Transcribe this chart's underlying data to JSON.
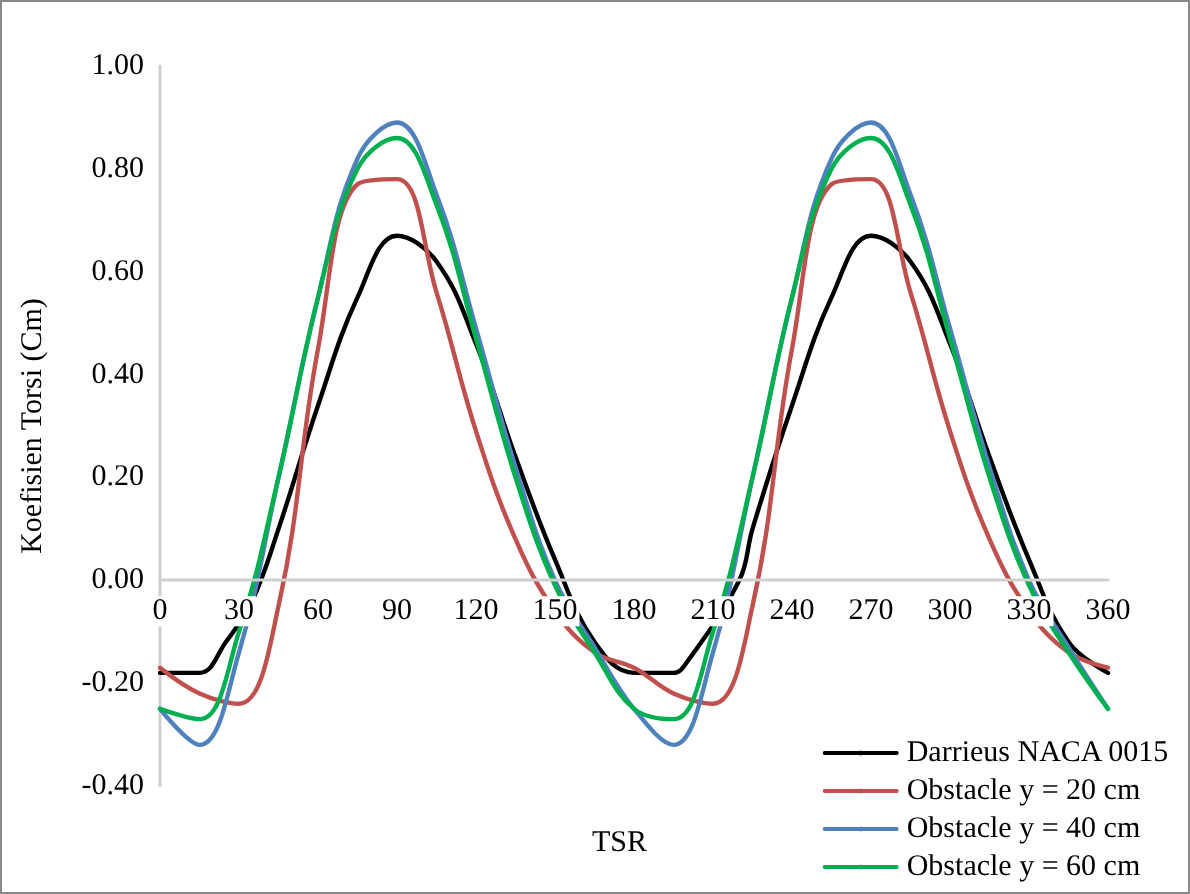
{
  "chart_data": {
    "type": "line",
    "annotations": [
      "TSR"
    ],
    "ylabel": "Koefisien Torsi (Cm)",
    "x": [
      0,
      15,
      30,
      45,
      60,
      75,
      90,
      105,
      120,
      135,
      150,
      165,
      180,
      195,
      210,
      225,
      240,
      255,
      270,
      285,
      300,
      315,
      330,
      345,
      360
    ],
    "xlim": [
      0,
      360
    ],
    "xticks": [
      0,
      30,
      60,
      90,
      120,
      150,
      180,
      210,
      240,
      270,
      300,
      330,
      360
    ],
    "ylim": [
      -0.4,
      1
    ],
    "yticks": [
      {
        "value": -0.4,
        "label": "-0.40"
      },
      {
        "value": -0.2,
        "label": "-0.20"
      },
      {
        "value": 0,
        "label": "0.00"
      },
      {
        "value": 0.2,
        "label": "0.20"
      },
      {
        "value": 0.4,
        "label": "0.40"
      },
      {
        "value": 0.6,
        "label": "0.60"
      },
      {
        "value": 0.8,
        "label": "0.80"
      },
      {
        "value": 1,
        "label": "1.00"
      }
    ],
    "grid": false,
    "legend": "bottom right",
    "marker": "none",
    "line_style": "solid",
    "series": [
      {
        "name": "Darrieus NACA 0015",
        "color": "#000000",
        "x": [
          0,
          15,
          25,
          35,
          45,
          60,
          75,
          90,
          105,
          120,
          135,
          150,
          165,
          180,
          195,
          200,
          220,
          225,
          240,
          255,
          270,
          285,
          300,
          315,
          330,
          345,
          360
        ],
        "values": [
          -0.18,
          -0.18,
          -0.12,
          -0.04,
          0.1,
          0.34,
          0.55,
          0.67,
          0.62,
          0.46,
          0.24,
          0.04,
          -0.12,
          -0.18,
          -0.18,
          -0.16,
          0.0,
          0.1,
          0.34,
          0.55,
          0.67,
          0.62,
          0.46,
          0.24,
          0.04,
          -0.12,
          -0.18
        ]
      },
      {
        "name": "Obstacle y = 20 cm",
        "color": "#c0504d",
        "values": [
          -0.17,
          -0.22,
          -0.24,
          -0.05,
          0.45,
          0.77,
          0.78,
          0.56,
          0.29,
          0.08,
          -0.06,
          -0.14,
          -0.17,
          -0.22,
          -0.24,
          -0.05,
          0.45,
          0.77,
          0.78,
          0.56,
          0.29,
          0.08,
          -0.06,
          -0.14,
          -0.17
        ]
      },
      {
        "name": "Obstacle y = 40 cm",
        "color": "#4f81bd",
        "values": [
          -0.25,
          -0.32,
          -0.14,
          0.2,
          0.55,
          0.82,
          0.89,
          0.75,
          0.49,
          0.22,
          0.0,
          -0.13,
          -0.25,
          -0.32,
          -0.14,
          0.2,
          0.55,
          0.82,
          0.89,
          0.75,
          0.49,
          0.22,
          0.0,
          -0.13,
          -0.25
        ]
      },
      {
        "name": "Obstacle y = 60 cm",
        "color": "#00b050",
        "values": [
          -0.25,
          -0.27,
          -0.1,
          0.2,
          0.55,
          0.8,
          0.86,
          0.73,
          0.47,
          0.2,
          -0.01,
          -0.14,
          -0.25,
          -0.27,
          -0.1,
          0.2,
          0.55,
          0.8,
          0.86,
          0.73,
          0.47,
          0.2,
          -0.01,
          -0.14,
          -0.25
        ]
      }
    ]
  }
}
